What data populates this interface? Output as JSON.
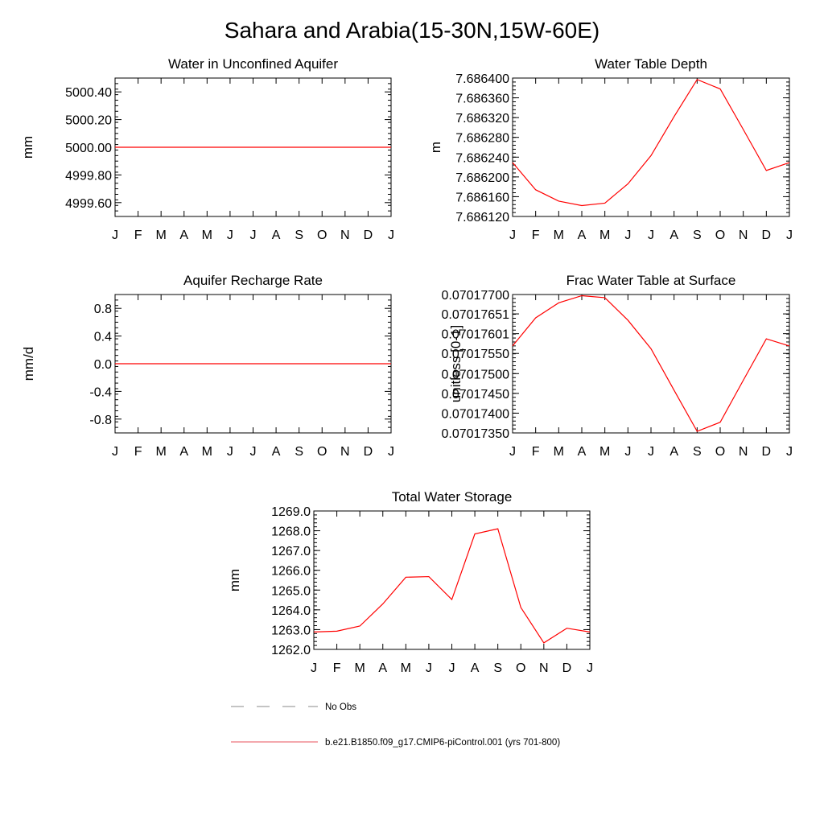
{
  "page_title": "Sahara and Arabia(15-30N,15W-60E)",
  "legend": [
    {
      "label": "No Obs",
      "color": "#888888",
      "style": "dashed"
    },
    {
      "label": "b.e21.B1850.f09_g17.CMIP6-piControl.001 (yrs 701-800)",
      "color": "#e8505b",
      "style": "solid"
    }
  ],
  "chart_data": [
    {
      "type": "line",
      "title": "Water in Unconfined Aquifer",
      "ylabel": "mm",
      "xlabel": "",
      "categories": [
        "J",
        "F",
        "M",
        "A",
        "M",
        "J",
        "J",
        "A",
        "S",
        "O",
        "N",
        "D",
        "J"
      ],
      "yticks": [
        4999.6,
        4999.8,
        5000.0,
        5000.2,
        5000.4
      ],
      "ytick_labels": [
        "4999.60",
        "4999.80",
        "5000.00",
        "5000.20",
        "5000.40"
      ],
      "ylim": [
        4999.5,
        5000.5
      ],
      "grid": false,
      "series": [
        {
          "color": "#ff0000",
          "values": [
            5000.0,
            5000.0,
            5000.0,
            5000.0,
            5000.0,
            5000.0,
            5000.0,
            5000.0,
            5000.0,
            5000.0,
            5000.0,
            5000.0,
            5000.0
          ]
        }
      ]
    },
    {
      "type": "line",
      "title": "Water Table Depth",
      "ylabel": "m",
      "xlabel": "",
      "categories": [
        "J",
        "F",
        "M",
        "A",
        "M",
        "J",
        "J",
        "A",
        "S",
        "O",
        "N",
        "D",
        "J"
      ],
      "yticks": [
        7.68612,
        7.68616,
        7.6862,
        7.68624,
        7.68628,
        7.68632,
        7.68636,
        7.6864
      ],
      "ytick_labels": [
        "7.686120",
        "7.686160",
        "7.686200",
        "7.686240",
        "7.686280",
        "7.686320",
        "7.686360",
        "7.686400"
      ],
      "ylim": [
        7.68612,
        7.6864
      ],
      "grid": false,
      "series": [
        {
          "color": "#ff0000",
          "values": [
            7.686229,
            7.686174,
            7.686151,
            7.686142,
            7.686147,
            7.686186,
            7.686243,
            7.686322,
            7.686397,
            7.686378,
            7.686296,
            7.686213,
            7.686229
          ]
        }
      ]
    },
    {
      "type": "line",
      "title": "Aquifer Recharge Rate",
      "ylabel": "mm/d",
      "xlabel": "",
      "categories": [
        "J",
        "F",
        "M",
        "A",
        "M",
        "J",
        "J",
        "A",
        "S",
        "O",
        "N",
        "D",
        "J"
      ],
      "yticks": [
        -0.8,
        -0.4,
        0.0,
        0.4,
        0.8
      ],
      "ytick_labels": [
        "-0.8",
        "-0.4",
        "0.0",
        "0.4",
        "0.8"
      ],
      "ylim": [
        -1.0,
        1.0
      ],
      "grid": false,
      "series": [
        {
          "color": "#ff0000",
          "values": [
            0,
            0,
            0,
            0,
            0,
            0,
            0,
            0,
            0,
            0,
            0,
            0,
            0
          ]
        }
      ]
    },
    {
      "type": "line",
      "title": "Frac Water Table at Surface",
      "ylabel": "unitless [0-1]",
      "xlabel": "",
      "categories": [
        "J",
        "F",
        "M",
        "A",
        "M",
        "J",
        "J",
        "A",
        "S",
        "O",
        "N",
        "D",
        "J"
      ],
      "yticks": [
        0.0701735,
        0.070174,
        0.0701745,
        0.070175,
        0.07017551,
        0.07017601,
        0.07017651,
        0.070177
      ],
      "ytick_labels": [
        "0.07017350",
        "0.07017400",
        "0.07017450",
        "0.07017500",
        "0.07017550",
        "0.07017601",
        "0.07017651",
        "0.07017700"
      ],
      "ylim": [
        0.0701735,
        0.070177
      ],
      "grid": false,
      "series": [
        {
          "color": "#ff0000",
          "values": [
            0.0701757,
            0.07017641,
            0.07017679,
            0.07017697,
            0.07017692,
            0.07017635,
            0.07017563,
            0.07017458,
            0.07017354,
            0.07017377,
            0.07017483,
            0.07017588,
            0.0701757
          ]
        }
      ]
    },
    {
      "type": "line",
      "title": "Total Water Storage",
      "ylabel": "mm",
      "xlabel": "",
      "categories": [
        "J",
        "F",
        "M",
        "A",
        "M",
        "J",
        "J",
        "A",
        "S",
        "O",
        "N",
        "D",
        "J"
      ],
      "yticks": [
        1262,
        1263,
        1264,
        1265,
        1266,
        1267,
        1268,
        1269
      ],
      "ytick_labels": [
        "1262.0",
        "1263.0",
        "1264.0",
        "1265.0",
        "1266.0",
        "1267.0",
        "1268.0",
        "1269.0"
      ],
      "ylim": [
        1262,
        1269
      ],
      "grid": false,
      "series": [
        {
          "color": "#ff0000",
          "values": [
            1262.88,
            1262.92,
            1263.18,
            1264.3,
            1265.65,
            1265.68,
            1264.52,
            1267.84,
            1268.1,
            1264.12,
            1262.33,
            1263.07,
            1262.88
          ]
        }
      ]
    }
  ]
}
